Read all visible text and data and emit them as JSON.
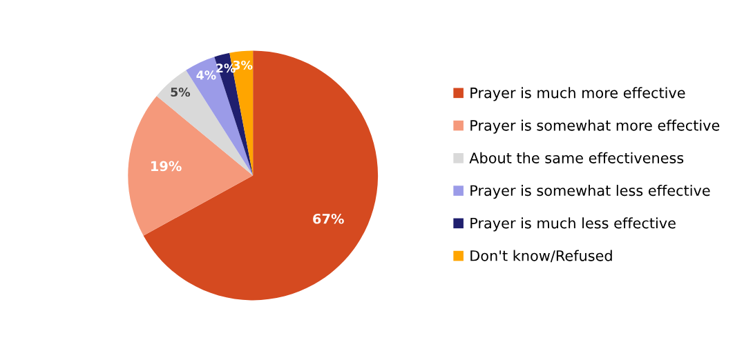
{
  "chart_data": {
    "type": "pie",
    "categories": [
      "Prayer is much more effective",
      "Prayer is somewhat more effective",
      "About the same effectiveness",
      "Prayer is somewhat less effective",
      "Prayer is much less effective",
      "Don't know/Refused"
    ],
    "values": [
      67,
      19,
      5,
      4,
      2,
      3
    ],
    "value_labels": [
      "67%",
      "19%",
      "5%",
      "4%",
      "2%",
      "3%"
    ],
    "colors": [
      "#d54a20",
      "#f5997b",
      "#d9d9d9",
      "#9b9be8",
      "#1f1f6e",
      "#ffa500"
    ],
    "legend": "right"
  }
}
